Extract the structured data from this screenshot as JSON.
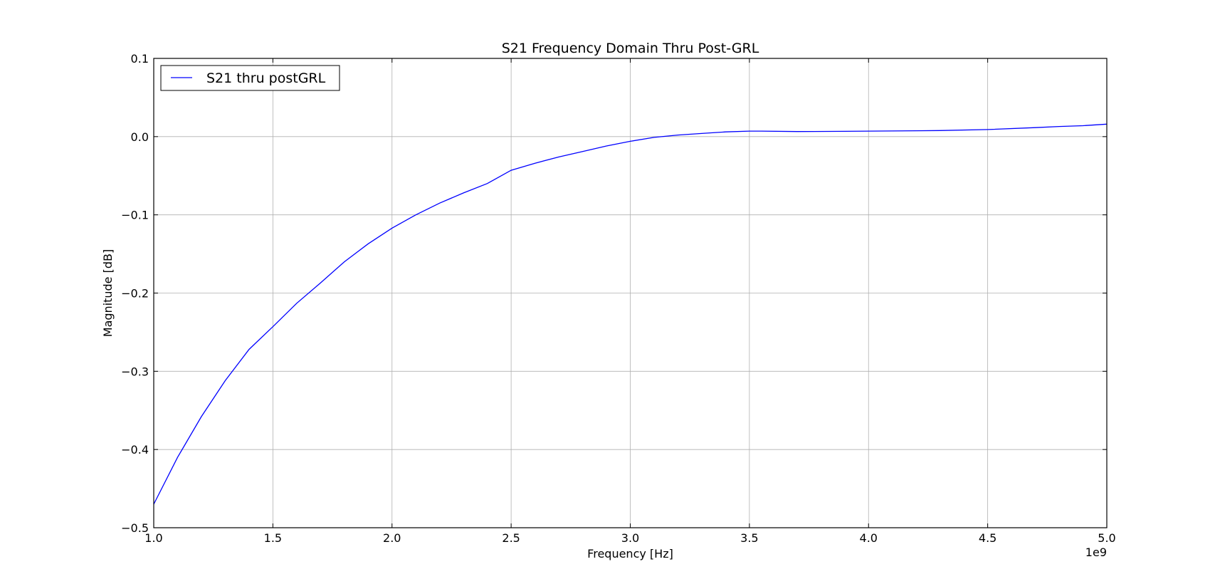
{
  "chart_data": {
    "type": "line",
    "title": "S21 Frequency Domain Thru Post-GRL",
    "xlabel": "Frequency [Hz]",
    "ylabel": "Magnitude [dB]",
    "x_offset_label": "1e9",
    "xlim": [
      1.0,
      5.0
    ],
    "ylim": [
      -0.5,
      0.1
    ],
    "x_ticks": [
      "1.0",
      "1.5",
      "2.0",
      "2.5",
      "3.0",
      "3.5",
      "4.0",
      "4.5",
      "5.0"
    ],
    "y_ticks": [
      "0.1",
      "0.0",
      "−0.1",
      "−0.2",
      "−0.3",
      "−0.4",
      "−0.5"
    ],
    "grid": true,
    "legend": {
      "position": "top-left",
      "entries": [
        "S21 thru postGRL"
      ]
    },
    "series": [
      {
        "name": "S21 thru postGRL",
        "color": "#0000ff",
        "x": [
          1.0,
          1.1,
          1.2,
          1.3,
          1.4,
          1.5,
          1.6,
          1.7,
          1.8,
          1.9,
          2.0,
          2.1,
          2.2,
          2.3,
          2.4,
          2.5,
          2.6,
          2.7,
          2.8,
          2.9,
          3.0,
          3.1,
          3.2,
          3.3,
          3.4,
          3.5,
          3.55,
          3.7,
          3.9,
          4.0,
          4.2,
          4.3,
          4.5,
          4.7,
          4.8,
          4.9,
          5.0
        ],
        "y": [
          -0.47,
          -0.41,
          -0.358,
          -0.312,
          -0.272,
          -0.243,
          -0.213,
          -0.187,
          -0.16,
          -0.137,
          -0.117,
          -0.1,
          -0.085,
          -0.072,
          -0.06,
          -0.043,
          -0.034,
          -0.026,
          -0.019,
          -0.012,
          -0.006,
          -0.001,
          0.002,
          0.004,
          0.006,
          0.007,
          0.007,
          0.0065,
          0.0068,
          0.007,
          0.0075,
          0.0078,
          0.009,
          0.0115,
          0.013,
          0.014,
          0.016
        ]
      }
    ]
  }
}
